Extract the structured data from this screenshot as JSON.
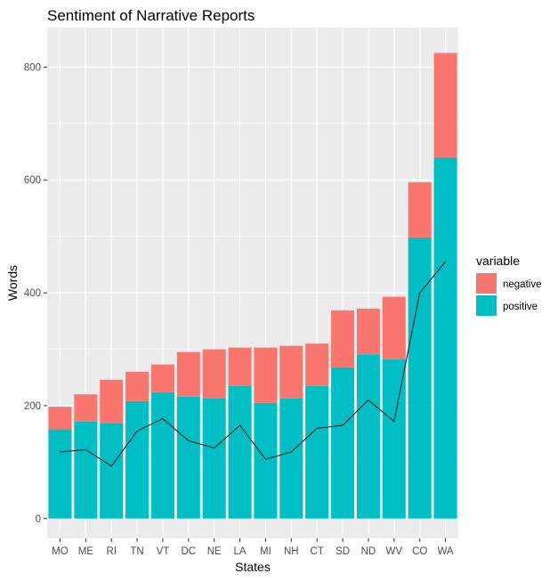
{
  "chart_data": {
    "type": "bar",
    "stacked": true,
    "title": "Sentiment of Narrative Reports",
    "xlabel": "States",
    "ylabel": "Words",
    "categories": [
      "MO",
      "ME",
      "RI",
      "TN",
      "VT",
      "DC",
      "NE",
      "LA",
      "MI",
      "NH",
      "CT",
      "SD",
      "ND",
      "WV",
      "CO",
      "WA"
    ],
    "series": [
      {
        "name": "positive",
        "color": "#00BFC4",
        "values": [
          158,
          172,
          169,
          208,
          224,
          216,
          213,
          235,
          205,
          213,
          235,
          268,
          291,
          282,
          498,
          640
        ]
      },
      {
        "name": "negative",
        "color": "#F8766D",
        "values": [
          40,
          48,
          77,
          52,
          49,
          79,
          87,
          68,
          98,
          93,
          75,
          101,
          81,
          111,
          98,
          185
        ]
      }
    ],
    "line": {
      "color": "#000000",
      "values": [
        118,
        122,
        93,
        155,
        177,
        138,
        125,
        165,
        105,
        118,
        160,
        165,
        210,
        172,
        400,
        455
      ]
    },
    "ylim": [
      -35,
      870
    ],
    "yticks": [
      0,
      200,
      400,
      600,
      800
    ],
    "grid": true,
    "legend": {
      "title": "variable",
      "position": "right",
      "entries": [
        "negative",
        "positive"
      ]
    }
  }
}
